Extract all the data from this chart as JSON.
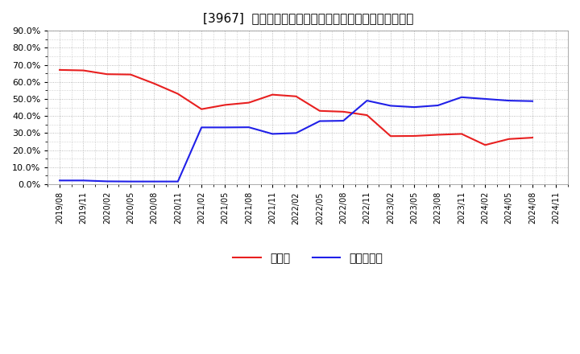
{
  "title": "[3967]  現預金、有利子負債の総資産に対する比率の推移",
  "x_labels": [
    "2019/08",
    "2019/11",
    "2020/02",
    "2020/05",
    "2020/08",
    "2020/11",
    "2021/02",
    "2021/05",
    "2021/08",
    "2021/11",
    "2022/02",
    "2022/05",
    "2022/08",
    "2022/11",
    "2023/02",
    "2023/05",
    "2023/08",
    "2023/11",
    "2024/02",
    "2024/05",
    "2024/08",
    "2024/11"
  ],
  "genkin": [
    0.67,
    0.667,
    0.645,
    0.643,
    0.59,
    0.53,
    0.44,
    0.465,
    0.478,
    0.525,
    0.515,
    0.43,
    0.425,
    0.405,
    0.282,
    0.283,
    0.29,
    0.295,
    0.23,
    0.265,
    0.273,
    null
  ],
  "yuri": [
    0.022,
    0.022,
    0.017,
    0.016,
    0.016,
    0.016,
    0.333,
    0.333,
    0.334,
    0.295,
    0.3,
    0.37,
    0.372,
    0.49,
    0.46,
    0.452,
    0.462,
    0.51,
    0.5,
    0.49,
    0.487,
    null
  ],
  "genkin_color": "#e82020",
  "yuri_color": "#2020e8",
  "background_color": "#ffffff",
  "grid_color": "#aaaaaa",
  "ylim": [
    0.0,
    0.9
  ],
  "yticks": [
    0.0,
    0.1,
    0.2,
    0.3,
    0.4,
    0.5,
    0.6,
    0.7,
    0.8,
    0.9
  ],
  "legend_genkin": "現預金",
  "legend_yuri": "有利子負債"
}
